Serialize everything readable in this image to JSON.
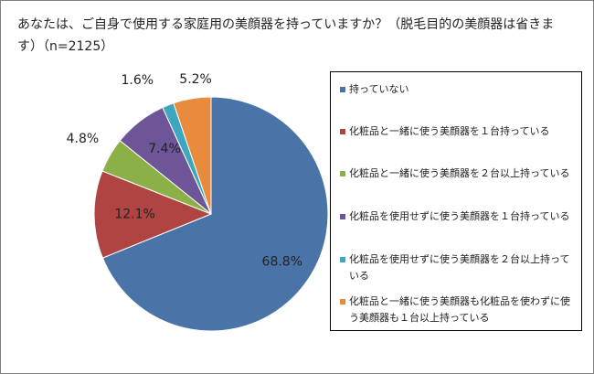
{
  "chart_title": "あなたは、ご自身で使用する家庭用の美顔器を持っていますか？（脱毛目的の美顔器は省きます）（n=2125）",
  "chart_data": {
    "type": "pie",
    "title": "あなたは、ご自身で使用する家庭用の美顔器を持っていますか？（脱毛目的の美顔器は省きます）（n=2125）",
    "legend_position": "right",
    "slices": [
      {
        "name": "持っていない",
        "value": 68.8,
        "label": "68.8%",
        "color": "#4A74A8"
      },
      {
        "name": "化粧品と一緒に使う美顔器を１台持っている",
        "value": 12.1,
        "label": "12.1%",
        "color": "#B04442"
      },
      {
        "name": "化粧品と一緒に使う美顔器を２台以上持っている",
        "value": 4.8,
        "label": "4.8%",
        "color": "#8BB048"
      },
      {
        "name": "化粧品を使用せずに使う美顔器を１台持っている",
        "value": 7.4,
        "label": "7.4%",
        "color": "#6E5597"
      },
      {
        "name": "化粧品を使用せずに使う美顔器を２台以上持っている",
        "value": 1.6,
        "label": "1.6%",
        "color": "#3FA6C0"
      },
      {
        "name": "化粧品と一緒に使う美顔器も化粧品を使わずに使う美顔器も１台以上持っている",
        "value": 5.2,
        "label": "5.2%",
        "color": "#E88B3C"
      }
    ]
  }
}
